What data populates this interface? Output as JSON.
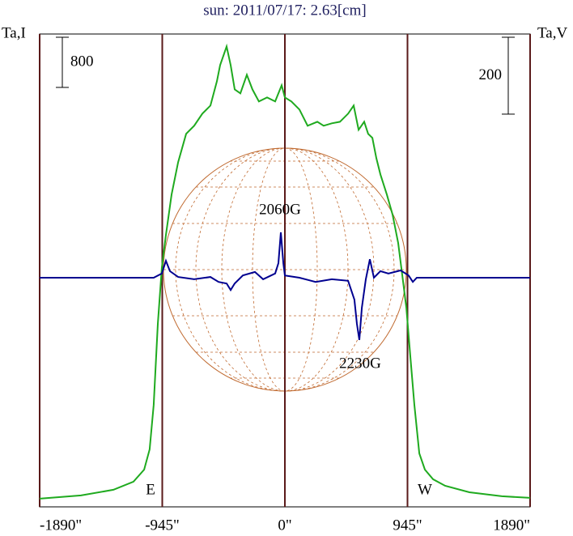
{
  "chart_data": {
    "type": "line",
    "title": "sun: 2011/07/17: 2.63[cm]",
    "ylabel": "Ta,I",
    "y2label": "Ta,V",
    "xlim": [
      -1890,
      1890
    ],
    "xticks": [
      {
        "value": -1890,
        "label": "-1890\""
      },
      {
        "value": -945,
        "label": "-945\""
      },
      {
        "value": 0,
        "label": "0\""
      },
      {
        "value": 945,
        "label": "945\""
      },
      {
        "value": 1890,
        "label": "1890\""
      }
    ],
    "ylim": [
      -130,
      7410
    ],
    "y2lim": [
      -596,
      634
    ],
    "grid": true,
    "scale_bars": [
      {
        "value": 800,
        "axis": "y"
      },
      {
        "value": 200,
        "axis": "y2"
      }
    ],
    "annotations": [
      "2060G",
      "2230G",
      "E",
      "W"
    ],
    "series": [
      {
        "color": "#1faa1f",
        "axis": "y",
        "x": [
          -1890,
          -1572,
          -1322,
          -1167,
          -1085,
          -1042,
          -1011,
          -979,
          -948,
          -917,
          -873,
          -823,
          -761,
          -699,
          -636,
          -574,
          -524,
          -499,
          -449,
          -418,
          -387,
          -343,
          -293,
          -250,
          -200,
          -137,
          -75,
          -25,
          0,
          50,
          112,
          175,
          250,
          299,
          362,
          424,
          487,
          530,
          568,
          611,
          642,
          674,
          705,
          736,
          786,
          830,
          873,
          905,
          936,
          967,
          998,
          1036,
          1079,
          1142,
          1235,
          1422,
          1672,
          1890
        ],
        "values": [
          0,
          52,
          142,
          271,
          464,
          787,
          1496,
          2786,
          3689,
          4205,
          4850,
          5366,
          5818,
          5947,
          6140,
          6269,
          6656,
          6914,
          7211,
          6914,
          6527,
          6463,
          6759,
          6527,
          6334,
          6398,
          6334,
          6592,
          6398,
          6334,
          6205,
          5947,
          6011,
          5947,
          5986,
          6011,
          6140,
          6269,
          5882,
          6011,
          5818,
          5753,
          5431,
          5173,
          4850,
          4528,
          4076,
          3560,
          3044,
          2270,
          1496,
          722,
          464,
          310,
          206,
          103,
          39,
          13
        ]
      },
      {
        "color": "#000090",
        "axis": "y2",
        "x": [
          -1890,
          -1011,
          -948,
          -917,
          -886,
          -823,
          -699,
          -574,
          -511,
          -449,
          -418,
          -387,
          -324,
          -231,
          -168,
          -106,
          -75,
          -50,
          -31,
          -12,
          0,
          112,
          237,
          362,
          487,
          536,
          555,
          574,
          593,
          624,
          655,
          686,
          736,
          798,
          892,
          954,
          986,
          1017,
          1890
        ],
        "values": [
          0,
          0,
          11,
          44,
          17,
          2,
          -4,
          2,
          -11,
          -15,
          -32,
          -15,
          6,
          15,
          -4,
          6,
          11,
          38,
          118,
          38,
          6,
          0,
          -11,
          -4,
          -8,
          -57,
          -120,
          -162,
          -78,
          -4,
          48,
          0,
          17,
          11,
          19,
          6,
          -11,
          0,
          0
        ]
      }
    ]
  }
}
